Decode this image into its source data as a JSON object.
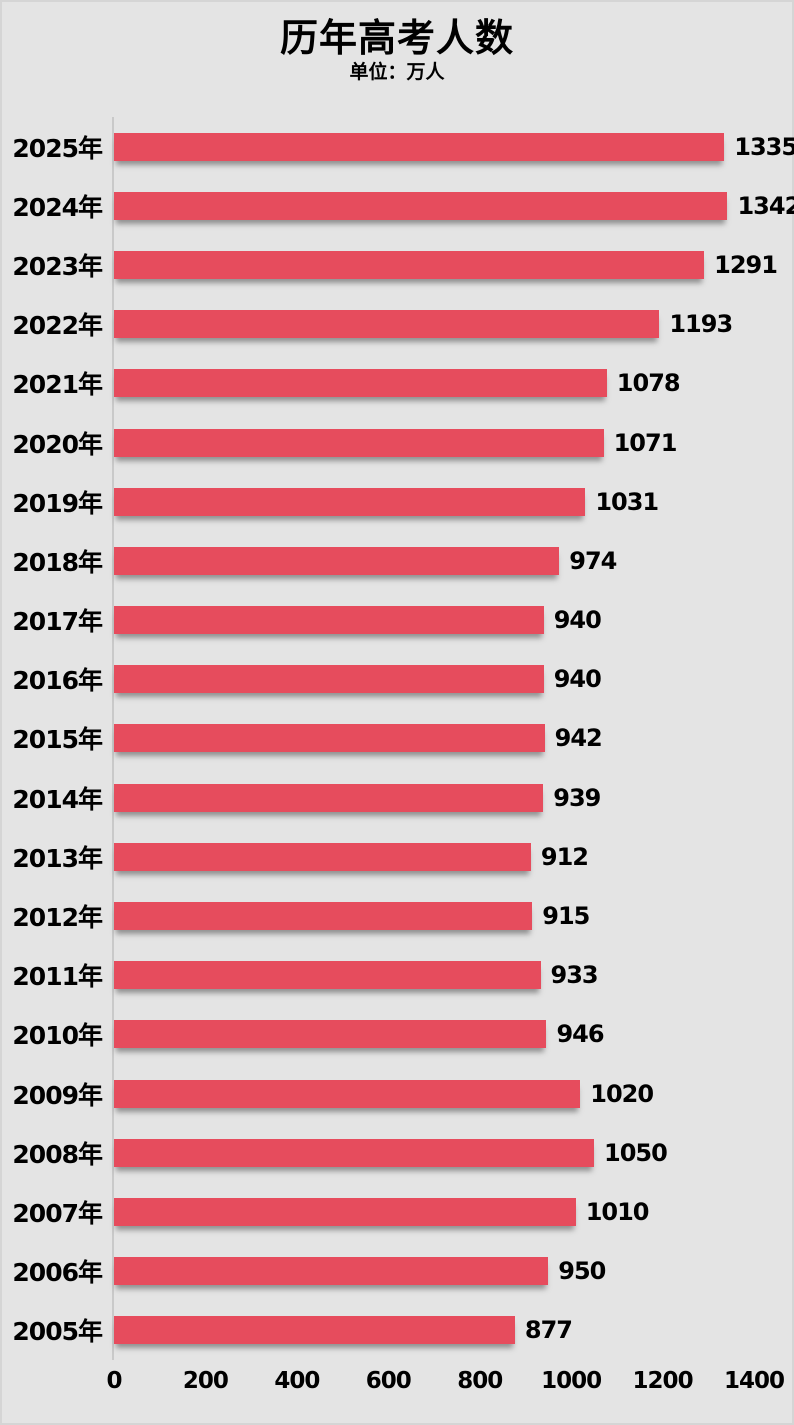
{
  "page": {
    "background": "#e4e4e4",
    "border_color": "#d5d5d5",
    "axis_line_color": "#c9c9c9",
    "text_color": "#000000"
  },
  "header": {
    "title": "历年高考人数",
    "subtitle": "单位：万人"
  },
  "chart_data": {
    "type": "bar",
    "orientation": "horizontal",
    "title": "历年高考人数",
    "subtitle": "单位：万人",
    "unit": "万人",
    "bar_color": "#e64c5d",
    "categories": [
      "2025年",
      "2024年",
      "2023年",
      "2022年",
      "2021年",
      "2020年",
      "2019年",
      "2018年",
      "2017年",
      "2016年",
      "2015年",
      "2014年",
      "2013年",
      "2012年",
      "2011年",
      "2010年",
      "2009年",
      "2008年",
      "2007年",
      "2006年",
      "2005年"
    ],
    "values": [
      1335,
      1342,
      1291,
      1193,
      1078,
      1071,
      1031,
      974,
      940,
      940,
      942,
      939,
      912,
      915,
      933,
      946,
      1020,
      1050,
      1010,
      950,
      877
    ],
    "xlim": [
      0,
      1400
    ],
    "x_ticks": [
      0,
      200,
      400,
      600,
      800,
      1000,
      1200,
      1400
    ],
    "grid": false,
    "legend": false,
    "value_labels_shown": true
  }
}
